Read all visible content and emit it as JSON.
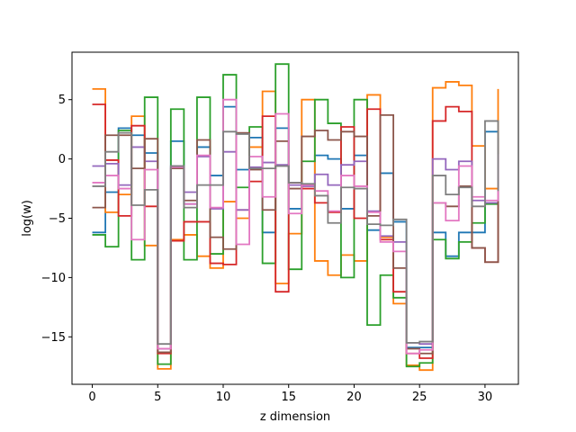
{
  "chart_data": {
    "type": "line",
    "step": "post",
    "xlabel": "z dimension",
    "ylabel": "log(w)",
    "xlim": [
      -1.55,
      32.55
    ],
    "ylim": [
      -19,
      9
    ],
    "x_ticks": [
      0,
      5,
      10,
      15,
      20,
      25,
      30
    ],
    "y_ticks": [
      5,
      0,
      -5,
      -10,
      -15
    ],
    "x": [
      0,
      1,
      2,
      3,
      4,
      5,
      6,
      7,
      8,
      9,
      10,
      11,
      12,
      13,
      14,
      15,
      16,
      17,
      18,
      19,
      20,
      21,
      22,
      23,
      24,
      25,
      26,
      27,
      28,
      29,
      30,
      31
    ],
    "series": [
      {
        "color": "#1f77b4",
        "values": [
          -6.2,
          -2.8,
          2.6,
          2.0,
          0.5,
          -16.0,
          1.5,
          -3.8,
          1.0,
          -1.4,
          4.4,
          -0.9,
          1.8,
          -6.2,
          2.6,
          -4.2,
          -2.2,
          0.3,
          0.0,
          -4.2,
          0.3,
          -6.0,
          -1.2,
          -5.3,
          -15.9,
          -15.9,
          -6.2,
          -8.2,
          -6.2,
          -6.2,
          2.3,
          -4.0
        ]
      },
      {
        "color": "#ff7f0e",
        "values": [
          5.9,
          -4.5,
          -3.0,
          3.6,
          -7.3,
          -17.7,
          -6.8,
          -6.4,
          -8.2,
          -9.2,
          -3.6,
          -5.0,
          1.0,
          5.7,
          -10.5,
          -6.3,
          5.0,
          -8.6,
          -9.8,
          -8.1,
          -8.6,
          5.4,
          -6.6,
          -12.2,
          -17.4,
          -17.8,
          6.0,
          6.5,
          6.2,
          1.1,
          -2.5,
          5.9
        ]
      },
      {
        "color": "#2ca02c",
        "values": [
          -6.4,
          -7.4,
          2.4,
          -8.5,
          5.2,
          -17.3,
          4.2,
          -8.5,
          5.2,
          -8.0,
          7.1,
          -2.4,
          2.7,
          -8.8,
          8.0,
          -9.3,
          -0.2,
          5.0,
          3.0,
          -10.0,
          5.0,
          -14.0,
          -9.8,
          -11.7,
          -17.5,
          -17.2,
          -6.8,
          -8.4,
          -7.0,
          -5.4,
          -3.8,
          -8.5
        ]
      },
      {
        "color": "#d62728",
        "values": [
          4.6,
          -0.1,
          -4.8,
          2.8,
          -4.0,
          -16.4,
          -6.9,
          -5.3,
          -5.3,
          -8.8,
          -8.9,
          -4.3,
          -1.9,
          3.6,
          -11.2,
          -2.0,
          -2.5,
          -3.7,
          -4.5,
          2.7,
          -5.0,
          4.2,
          -6.8,
          -11.2,
          -16.4,
          -16.8,
          3.2,
          4.4,
          4.0,
          -7.5,
          -8.7,
          -1.3
        ]
      },
      {
        "color": "#9467bd",
        "values": [
          -0.6,
          -0.4,
          -2.2,
          1.0,
          -0.2,
          -16.0,
          -0.6,
          -2.8,
          0.2,
          -4.2,
          0.6,
          -4.3,
          -0.7,
          -0.3,
          -0.5,
          -2.2,
          -2.3,
          -1.3,
          -2.2,
          -0.5,
          -0.2,
          -4.4,
          -6.5,
          -7.0,
          -15.5,
          -15.6,
          0.0,
          -0.9,
          -0.2,
          -3.5,
          -3.7,
          0.5
        ]
      },
      {
        "color": "#8c564b",
        "values": [
          -4.1,
          2.0,
          2.0,
          -0.8,
          1.7,
          -16.3,
          -0.8,
          -3.5,
          1.6,
          -6.6,
          -7.6,
          2.2,
          -0.9,
          -4.3,
          1.5,
          -2.5,
          1.9,
          2.4,
          1.6,
          2.3,
          1.9,
          -4.8,
          3.7,
          -9.2,
          -16.0,
          -16.4,
          -3.7,
          -4.0,
          -2.3,
          -7.5,
          -8.7,
          1.8
        ]
      },
      {
        "color": "#e377c2",
        "values": [
          -2.0,
          -1.4,
          -2.5,
          -6.8,
          -0.9,
          -16.0,
          -0.7,
          -3.8,
          0.3,
          -4.1,
          5.0,
          -7.2,
          0.2,
          -3.2,
          3.8,
          -4.6,
          -2.2,
          -2.7,
          -4.4,
          -1.4,
          -2.3,
          -4.5,
          -7.0,
          -7.8,
          -16.4,
          -16.1,
          -3.7,
          -5.2,
          -0.6,
          -3.2,
          -3.5,
          0.4
        ]
      },
      {
        "color": "#7f7f7f",
        "values": [
          -2.3,
          0.6,
          2.2,
          -3.9,
          -2.6,
          -15.6,
          -0.6,
          -4.1,
          -2.2,
          -2.2,
          2.3,
          2.1,
          -0.8,
          -0.8,
          -0.6,
          -2.0,
          -2.1,
          -3.1,
          -5.4,
          -2.4,
          -2.5,
          -5.5,
          -5.6,
          -5.1,
          -15.5,
          -15.4,
          -1.4,
          -3.0,
          -2.4,
          -4.0,
          3.2,
          -2.7
        ]
      }
    ]
  }
}
